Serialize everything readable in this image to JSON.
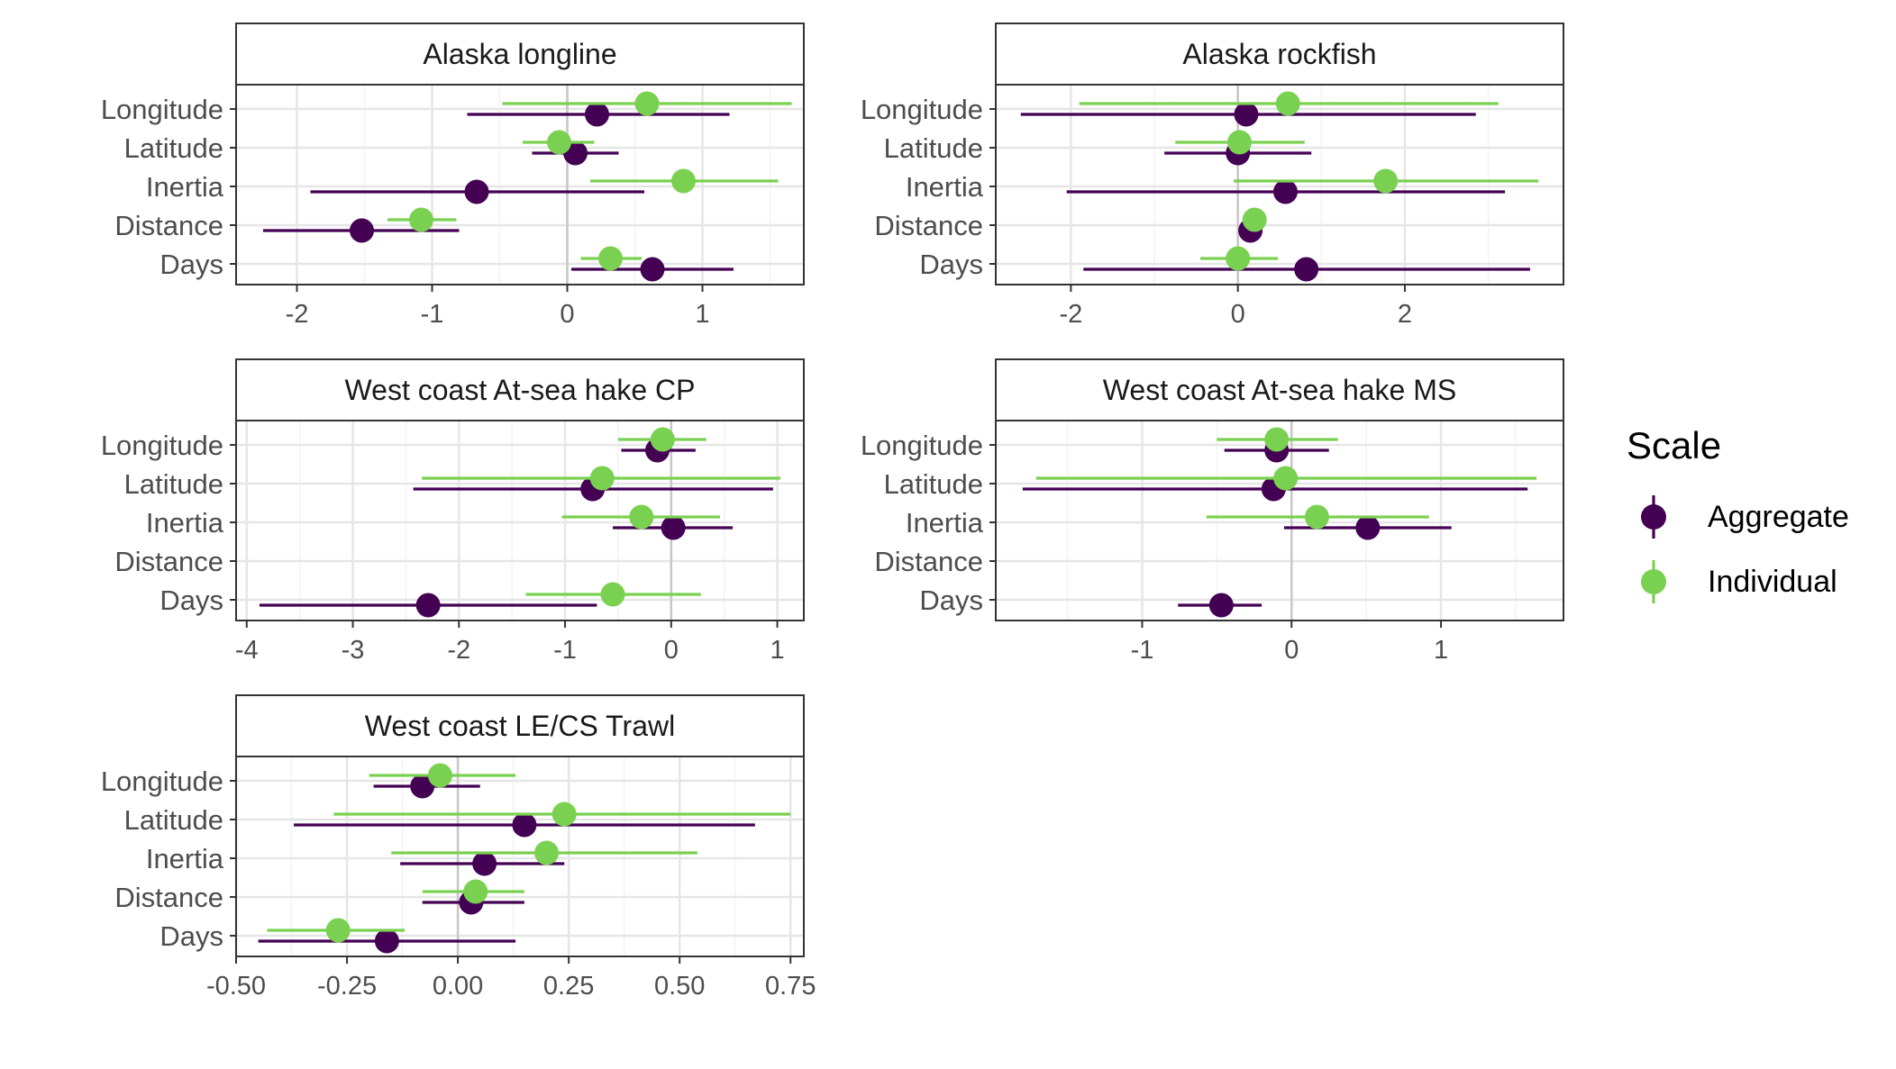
{
  "chart_data": {
    "type": "scatter",
    "legend": {
      "title": "Scale",
      "placement": "right",
      "entries": [
        {
          "label": "Aggregate",
          "color": "#440154"
        },
        {
          "label": "Individual",
          "color": "#7ad151"
        }
      ]
    },
    "categories": [
      "Longitude",
      "Latitude",
      "Inertia",
      "Distance",
      "Days"
    ],
    "panels": [
      {
        "title": "Alaska longline",
        "xlim": [
          -2.45,
          1.75
        ],
        "x_ticks": [
          -2,
          -1,
          0,
          1
        ],
        "x_tick_labels": [
          "-2",
          "-1",
          "0",
          "1"
        ],
        "series": [
          {
            "name": "Aggregate",
            "points": [
              {
                "category": "Longitude",
                "estimate": 0.22,
                "lower": -0.74,
                "upper": 1.2
              },
              {
                "category": "Latitude",
                "estimate": 0.06,
                "lower": -0.26,
                "upper": 0.38
              },
              {
                "category": "Inertia",
                "estimate": -0.67,
                "lower": -1.9,
                "upper": 0.57
              },
              {
                "category": "Distance",
                "estimate": -1.52,
                "lower": -2.25,
                "upper": -0.8
              },
              {
                "category": "Days",
                "estimate": 0.63,
                "lower": 0.03,
                "upper": 1.23
              }
            ]
          },
          {
            "name": "Individual",
            "points": [
              {
                "category": "Longitude",
                "estimate": 0.59,
                "lower": -0.48,
                "upper": 1.66
              },
              {
                "category": "Latitude",
                "estimate": -0.06,
                "lower": -0.33,
                "upper": 0.2
              },
              {
                "category": "Inertia",
                "estimate": 0.86,
                "lower": 0.17,
                "upper": 1.56
              },
              {
                "category": "Distance",
                "estimate": -1.08,
                "lower": -1.33,
                "upper": -0.82
              },
              {
                "category": "Days",
                "estimate": 0.32,
                "lower": 0.1,
                "upper": 0.55
              }
            ]
          }
        ]
      },
      {
        "title": "Alaska rockfish",
        "xlim": [
          -2.9,
          3.9
        ],
        "x_ticks": [
          -2,
          0,
          2
        ],
        "x_tick_labels": [
          "-2",
          "0",
          "2"
        ],
        "series": [
          {
            "name": "Aggregate",
            "points": [
              {
                "category": "Longitude",
                "estimate": 0.1,
                "lower": -2.6,
                "upper": 2.85
              },
              {
                "category": "Latitude",
                "estimate": 0.0,
                "lower": -0.88,
                "upper": 0.88
              },
              {
                "category": "Inertia",
                "estimate": 0.57,
                "lower": -2.05,
                "upper": 3.2
              },
              {
                "category": "Distance",
                "estimate": 0.15,
                "lower": 0.05,
                "upper": 0.25
              },
              {
                "category": "Days",
                "estimate": 0.82,
                "lower": -1.85,
                "upper": 3.5
              }
            ]
          },
          {
            "name": "Individual",
            "points": [
              {
                "category": "Longitude",
                "estimate": 0.6,
                "lower": -1.9,
                "upper": 3.12
              },
              {
                "category": "Latitude",
                "estimate": 0.02,
                "lower": -0.75,
                "upper": 0.8
              },
              {
                "category": "Inertia",
                "estimate": 1.77,
                "lower": -0.05,
                "upper": 3.6
              },
              {
                "category": "Distance",
                "estimate": 0.2,
                "lower": 0.1,
                "upper": 0.3
              },
              {
                "category": "Days",
                "estimate": 0.0,
                "lower": -0.45,
                "upper": 0.48
              }
            ]
          }
        ]
      },
      {
        "title": "West coast At-sea hake CP",
        "xlim": [
          -4.1,
          1.25
        ],
        "x_ticks": [
          -4,
          -3,
          -2,
          -1,
          0,
          1
        ],
        "x_tick_labels": [
          "-4",
          "-3",
          "-2",
          "-1",
          "0",
          "1"
        ],
        "series": [
          {
            "name": "Aggregate",
            "points": [
              {
                "category": "Longitude",
                "estimate": -0.13,
                "lower": -0.47,
                "upper": 0.23
              },
              {
                "category": "Latitude",
                "estimate": -0.74,
                "lower": -2.43,
                "upper": 0.96
              },
              {
                "category": "Inertia",
                "estimate": 0.02,
                "lower": -0.55,
                "upper": 0.58
              },
              {
                "category": "Distance",
                "estimate": null,
                "lower": null,
                "upper": null
              },
              {
                "category": "Days",
                "estimate": -2.29,
                "lower": -3.88,
                "upper": -0.7
              }
            ]
          },
          {
            "name": "Individual",
            "points": [
              {
                "category": "Longitude",
                "estimate": -0.08,
                "lower": -0.5,
                "upper": 0.33
              },
              {
                "category": "Latitude",
                "estimate": -0.65,
                "lower": -2.35,
                "upper": 1.03
              },
              {
                "category": "Inertia",
                "estimate": -0.28,
                "lower": -1.03,
                "upper": 0.46
              },
              {
                "category": "Distance",
                "estimate": null,
                "lower": null,
                "upper": null
              },
              {
                "category": "Days",
                "estimate": -0.55,
                "lower": -1.37,
                "upper": 0.28
              }
            ]
          }
        ]
      },
      {
        "title": "West coast At-sea hake MS",
        "xlim": [
          -1.98,
          1.82
        ],
        "x_ticks": [
          -1,
          0,
          1
        ],
        "x_tick_labels": [
          "-1",
          "0",
          "1"
        ],
        "series": [
          {
            "name": "Aggregate",
            "points": [
              {
                "category": "Longitude",
                "estimate": -0.1,
                "lower": -0.45,
                "upper": 0.25
              },
              {
                "category": "Latitude",
                "estimate": -0.12,
                "lower": -1.8,
                "upper": 1.58
              },
              {
                "category": "Inertia",
                "estimate": 0.51,
                "lower": -0.05,
                "upper": 1.07
              },
              {
                "category": "Distance",
                "estimate": null,
                "lower": null,
                "upper": null
              },
              {
                "category": "Days",
                "estimate": -0.47,
                "lower": -0.76,
                "upper": -0.2
              }
            ]
          },
          {
            "name": "Individual",
            "points": [
              {
                "category": "Longitude",
                "estimate": -0.1,
                "lower": -0.5,
                "upper": 0.31
              },
              {
                "category": "Latitude",
                "estimate": -0.04,
                "lower": -1.71,
                "upper": 1.64
              },
              {
                "category": "Inertia",
                "estimate": 0.17,
                "lower": -0.57,
                "upper": 0.92
              },
              {
                "category": "Distance",
                "estimate": null,
                "lower": null,
                "upper": null
              },
              {
                "category": "Days",
                "estimate": null,
                "lower": null,
                "upper": null
              }
            ]
          }
        ]
      },
      {
        "title": "West coast LE/CS Trawl",
        "xlim": [
          -0.5,
          0.78
        ],
        "x_ticks": [
          -0.5,
          -0.25,
          0,
          0.25,
          0.5,
          0.75
        ],
        "x_tick_labels": [
          "-0.50",
          "-0.25",
          "0.00",
          "0.25",
          "0.50",
          "0.75"
        ],
        "series": [
          {
            "name": "Aggregate",
            "points": [
              {
                "category": "Longitude",
                "estimate": -0.08,
                "lower": -0.19,
                "upper": 0.05
              },
              {
                "category": "Latitude",
                "estimate": 0.15,
                "lower": -0.37,
                "upper": 0.67
              },
              {
                "category": "Inertia",
                "estimate": 0.06,
                "lower": -0.13,
                "upper": 0.24
              },
              {
                "category": "Distance",
                "estimate": 0.03,
                "lower": -0.08,
                "upper": 0.15
              },
              {
                "category": "Days",
                "estimate": -0.16,
                "lower": -0.45,
                "upper": 0.13
              }
            ]
          },
          {
            "name": "Individual",
            "points": [
              {
                "category": "Longitude",
                "estimate": -0.04,
                "lower": -0.2,
                "upper": 0.13
              },
              {
                "category": "Latitude",
                "estimate": 0.24,
                "lower": -0.28,
                "upper": 0.75
              },
              {
                "category": "Inertia",
                "estimate": 0.2,
                "lower": -0.15,
                "upper": 0.54
              },
              {
                "category": "Distance",
                "estimate": 0.04,
                "lower": -0.08,
                "upper": 0.15
              },
              {
                "category": "Days",
                "estimate": -0.27,
                "lower": -0.43,
                "upper": -0.12
              }
            ]
          }
        ]
      }
    ]
  }
}
